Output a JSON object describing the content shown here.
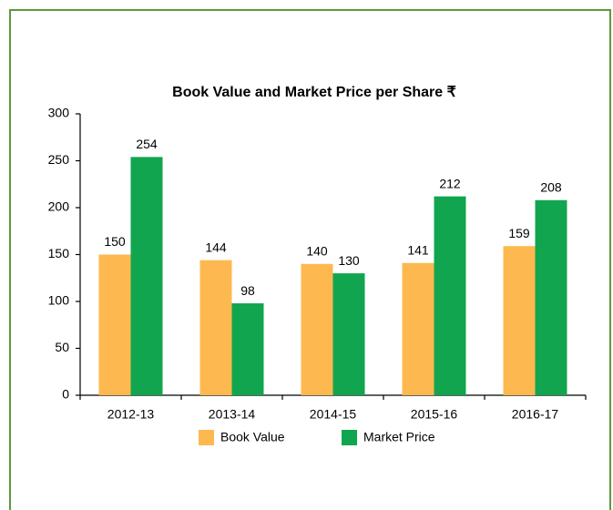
{
  "chart_data": {
    "type": "bar",
    "title": "Book Value and Market Price per Share ₹",
    "categories": [
      "2012-13",
      "2013-14",
      "2014-15",
      "2015-16",
      "2016-17"
    ],
    "series": [
      {
        "name": "Book Value",
        "color": "#fdb94f",
        "values": [
          150,
          144,
          140,
          141,
          159
        ]
      },
      {
        "name": "Market Price",
        "color": "#12a54f",
        "values": [
          254,
          98,
          130,
          212,
          208
        ]
      }
    ],
    "ylim": [
      0,
      300
    ],
    "yticks": [
      0,
      50,
      100,
      150,
      200,
      250,
      300
    ],
    "grid": false,
    "legend": "bottom"
  }
}
